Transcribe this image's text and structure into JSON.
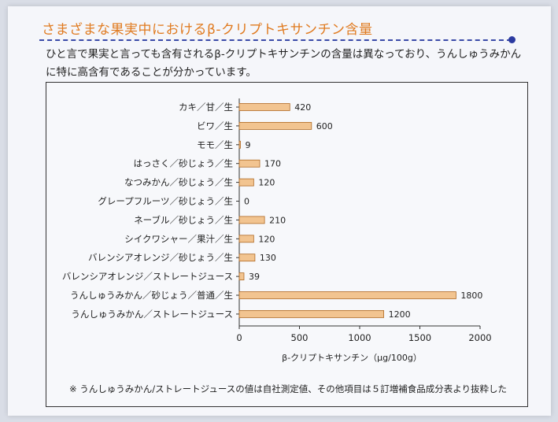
{
  "page": {
    "title": "さまざまな果実中におけるβ-クリプトキサンチン含量",
    "description": "ひと言で果実と言っても含有されるβ-クリプトキサンチンの含量は異なっており、うんしゅうみかんに特に高含有であることが分かっています。",
    "note": "※ うんしゅうみかん/ストレートジュースの値は自社測定値、その他項目は５訂増補食品成分表より抜粋した"
  },
  "colors": {
    "title": "#e07a1f",
    "bar_fill": "#f2c490",
    "bar_stroke": "#b06a24",
    "dash": "#3a4aa8"
  },
  "chart_data": {
    "type": "bar",
    "orientation": "horizontal",
    "categories": [
      "カキ／甘／生",
      "ビワ／生",
      "モモ／生",
      "はっさく／砂じょう／生",
      "なつみかん／砂じょう／生",
      "グレープフルーツ／砂じょう／生",
      "ネーブル／砂じょう／生",
      "シイクワシャー／果汁／生",
      "バレンシアオレンジ／砂じょう／生",
      "バレンシアオレンジ／ストレートジュース",
      "うんしゅうみかん／砂じょう／普通／生",
      "うんしゅうみかん／ストレートジュース"
    ],
    "values": [
      420,
      600,
      9,
      170,
      120,
      0,
      210,
      120,
      130,
      39,
      1800,
      1200
    ],
    "xlabel": "β-クリプトキサンチン（μg/100g）",
    "xlim": [
      0,
      2000
    ],
    "xticks": [
      0,
      500,
      1000,
      1500,
      2000
    ],
    "grid": false,
    "legend": "none",
    "data_labels": true
  }
}
